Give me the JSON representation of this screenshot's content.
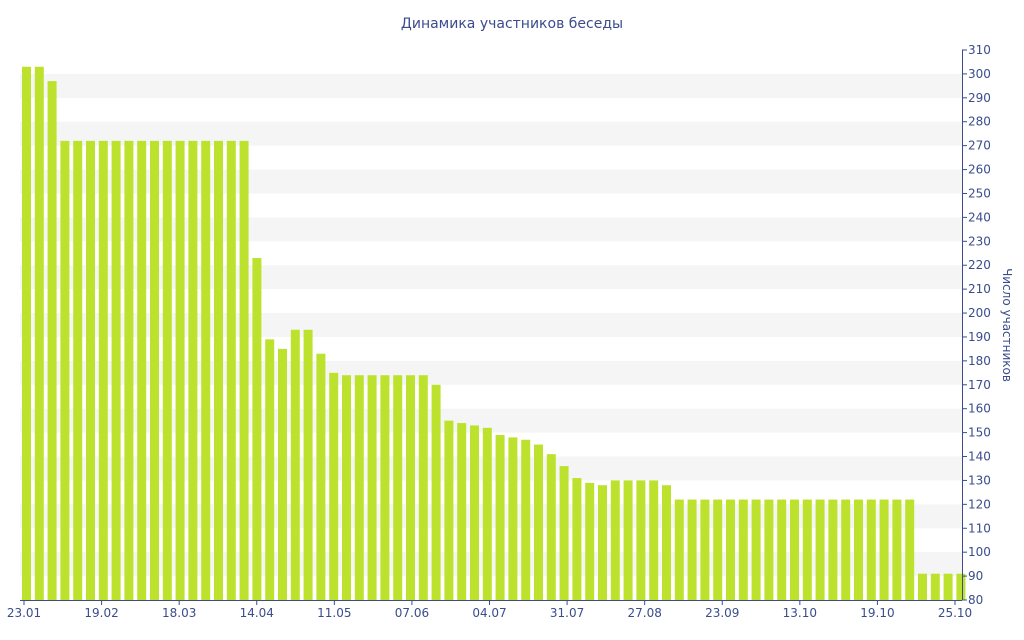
{
  "chart_data": {
    "type": "bar",
    "title": "Динамика участников беседы",
    "xlabel": "",
    "ylabel": "Число участников",
    "ylim": [
      80,
      310
    ],
    "y_ticks": [
      80,
      90,
      100,
      110,
      120,
      130,
      140,
      150,
      160,
      170,
      180,
      190,
      200,
      210,
      220,
      230,
      240,
      250,
      260,
      270,
      280,
      290,
      300,
      310
    ],
    "x_tick_labels": [
      "23.01",
      "19.02",
      "18.03",
      "14.04",
      "11.05",
      "07.06",
      "04.07",
      "31.07",
      "27.08",
      "23.09",
      "13.10",
      "19.10",
      "25.10"
    ],
    "bar_color": "#bde22e",
    "band_color": "#f5f5f5",
    "axis_color": "#3a4c8c",
    "values": [
      303,
      303,
      297,
      272,
      272,
      272,
      272,
      272,
      272,
      272,
      272,
      272,
      272,
      272,
      272,
      272,
      272,
      272,
      223,
      189,
      185,
      193,
      193,
      183,
      175,
      174,
      174,
      174,
      174,
      174,
      174,
      174,
      170,
      155,
      154,
      153,
      152,
      149,
      148,
      147,
      145,
      141,
      136,
      131,
      129,
      128,
      130,
      130,
      130,
      130,
      128,
      122,
      122,
      122,
      122,
      122,
      122,
      122,
      122,
      122,
      122,
      122,
      122,
      122,
      122,
      122,
      122,
      122,
      122,
      122,
      91,
      91,
      91,
      91
    ]
  }
}
